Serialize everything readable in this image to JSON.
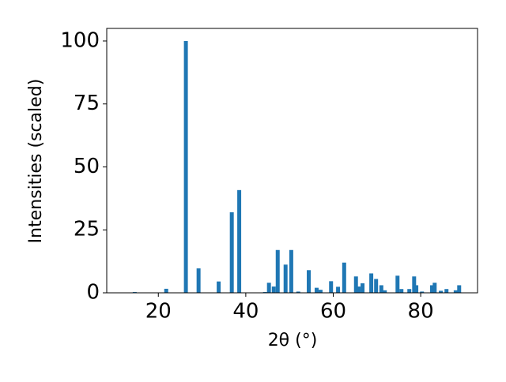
{
  "chart_data": {
    "type": "bar",
    "xlabel": "2θ (°)",
    "ylabel": "Intensities (scaled)",
    "x": [
      14.6,
      21.8,
      26.3,
      29.2,
      33.8,
      36.8,
      38.5,
      44.4,
      45.3,
      46.4,
      47.3,
      49.1,
      50.4,
      52.0,
      54.4,
      56.2,
      57.1,
      59.5,
      61.1,
      62.5,
      65.2,
      65.8,
      66.7,
      68.7,
      69.8,
      71.0,
      71.8,
      74.7,
      75.6,
      77.4,
      78.5,
      79.0,
      80.3,
      82.6,
      83.2,
      84.6,
      85.9,
      88.0,
      88.8
    ],
    "values": [
      0.3,
      1.6,
      100,
      9.7,
      4.5,
      32,
      40.8,
      0.3,
      4,
      2.5,
      17,
      11.2,
      17,
      0.5,
      9,
      2,
      1.2,
      4.6,
      2.4,
      12,
      6.5,
      2.5,
      3.8,
      7.7,
      5.5,
      3,
      1,
      6.8,
      1.5,
      1.5,
      6.5,
      3,
      0.5,
      3,
      4,
      0.8,
      1.5,
      1,
      3
    ],
    "color": "#1f77b4",
    "xlim": [
      8.2,
      93.0
    ],
    "xticks": [
      20,
      40,
      60,
      80
    ],
    "ylim": [
      0,
      105
    ],
    "yticks": [
      0,
      25,
      50,
      75,
      100
    ]
  }
}
